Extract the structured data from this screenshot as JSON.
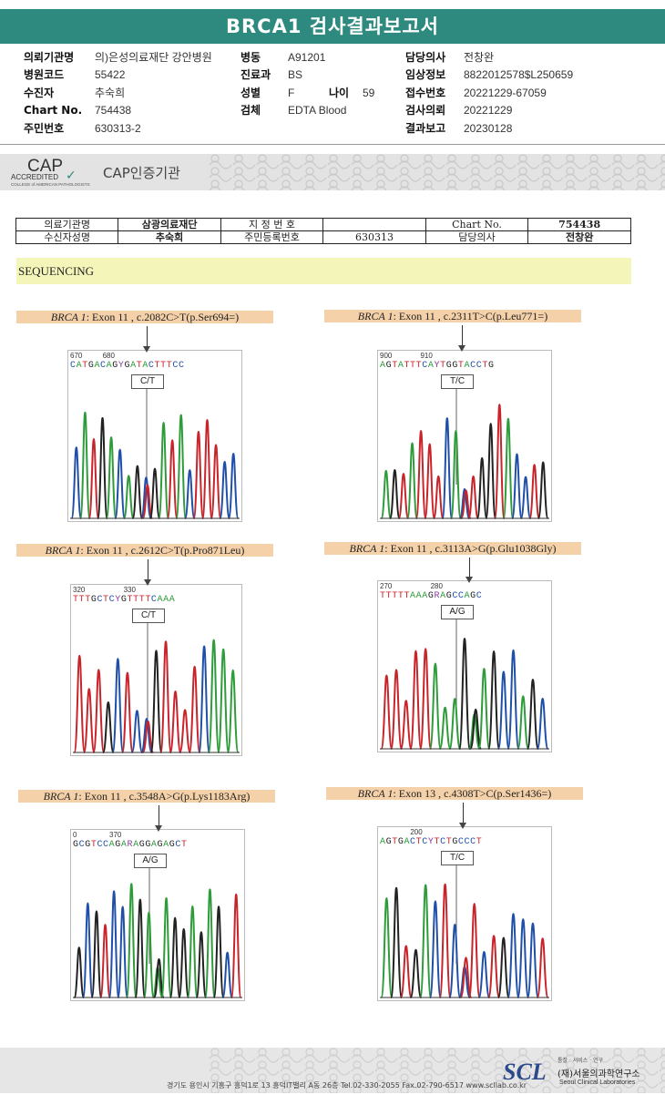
{
  "report_title": "BRCA1 검사결과보고서",
  "header_info": {
    "col1": [
      {
        "k": "의뢰기관명",
        "v": "의)은성의료재단 강안병원"
      },
      {
        "k": "병원코드",
        "v": "55422"
      },
      {
        "k": "수진자",
        "v": "추숙희"
      },
      {
        "k": "Chart No.",
        "v": "754438"
      },
      {
        "k": "주민번호",
        "v": "630313-2"
      }
    ],
    "col2": [
      {
        "k": "병동",
        "v": "A91201"
      },
      {
        "k": "진료과",
        "v": "BS"
      },
      {
        "k": "성별",
        "v": "F"
      },
      {
        "k": "검체",
        "v": "EDTA Blood"
      }
    ],
    "age_label": "나이",
    "age_value": "59",
    "col3": [
      {
        "k": "담당의사",
        "v": "전창완"
      },
      {
        "k": "임상정보",
        "v": "8822012578$L250659"
      },
      {
        "k": "접수번호",
        "v": "20221229-67059"
      },
      {
        "k": "검사의뢰",
        "v": "20221229"
      },
      {
        "k": "결과보고",
        "v": "20230128"
      }
    ]
  },
  "cap": {
    "logo_big": "CAP",
    "logo_accredited": "ACCREDITED",
    "logo_college": "COLLEGE of AMERICAN PATHOLOGISTS",
    "label": "CAP인증기관"
  },
  "patient_table": {
    "r1": [
      "의료기관명",
      "삼광의료재단",
      "지 정 번 호",
      "",
      "Chart No.",
      "754438"
    ],
    "r2": [
      "수신자성명",
      "추숙희",
      "주민등록번호",
      "630313",
      "담당의사",
      "전창완"
    ]
  },
  "section_title": "SEQUENCING",
  "variants": [
    {
      "gene": "BRCA 1",
      "rest": ": Exon 11 , c.2082C>T(p.Ser694=)",
      "ticks": "670          680",
      "seq": "CATGACAGYGATACTTTCC",
      "call": "C/T"
    },
    {
      "gene": "BRCA 1",
      "rest": ": Exon 11 , c.2311T>C(p.Leu771=)",
      "ticks": "900              910",
      "seq": "AGTATTTCAYTGGTACCTG",
      "call": "T/C"
    },
    {
      "gene": "BRCA 1",
      "rest": ": Exon 11 , c.2612C>T(p.Pro871Leu)",
      "ticks": "320                   330",
      "seq": "TTTGCTCYGTTTTCAAA",
      "call": "C/T"
    },
    {
      "gene": "BRCA 1",
      "rest": ": Exon 11 , c.3113A>G(p.Glu1038Gly)",
      "ticks": "270                   280",
      "seq": "TTTTTAAAGRAGCCAGC",
      "call": "A/G"
    },
    {
      "gene": "BRCA 1",
      "rest": ": Exon 11 , c.3548A>G(p.Lys1183Arg)",
      "ticks": "0                370",
      "seq": "GCGTCCAGARAGGAGAGCT",
      "call": "A/G"
    },
    {
      "gene": "BRCA 1",
      "rest": ": Exon 13 , c.4308T>C(p.Ser1436=)",
      "ticks": "               200",
      "seq": "AGTGACTCYTCTGCCCT",
      "call": "T/C"
    }
  ],
  "footer": {
    "address": "경기도 용인시 기흥구 흥덕1로 13 흥덕IT밸리 A동 26층  Tel.02-330-2055  Fax.02-790-6517  www.scllab.co.kr",
    "logo": "SCL",
    "slogan": "통찰 · 서비스 · 연구",
    "name_ko": "(재)서울의과학연구소",
    "name_en": "Seoul Clinical Laboratories"
  }
}
